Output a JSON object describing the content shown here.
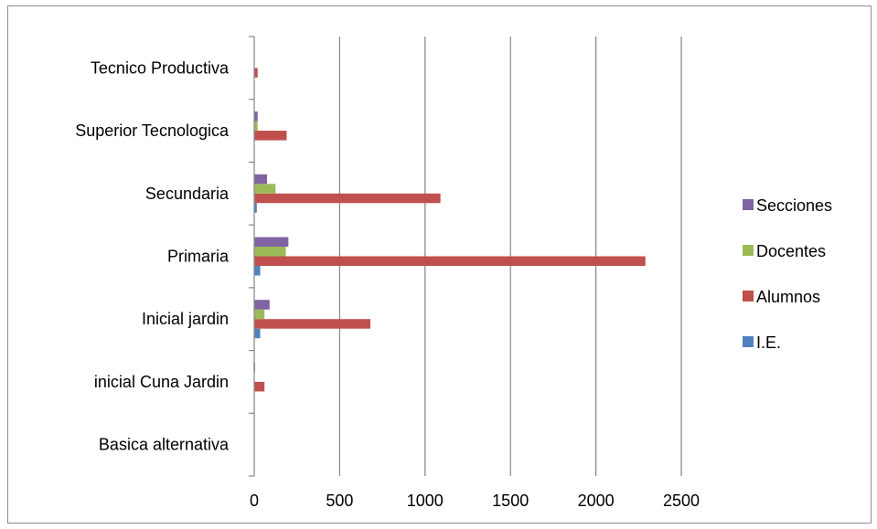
{
  "chart_data": {
    "type": "bar",
    "orientation": "horizontal",
    "title": "",
    "xlabel": "",
    "ylabel": "",
    "categories": [
      "Basica alternativa",
      "inicial Cuna Jardin",
      "Inicial jardin",
      "Primaria",
      "Secundaria",
      "Superior Tecnologica",
      "Tecnico Productiva"
    ],
    "series": [
      {
        "name": "I.E.",
        "color": "#4f81bd",
        "values": [
          0,
          0,
          35,
          35,
          15,
          2,
          0
        ]
      },
      {
        "name": "Alumnos",
        "color": "#c0504d",
        "values": [
          0,
          60,
          680,
          2290,
          1090,
          190,
          20
        ]
      },
      {
        "name": "Docentes",
        "color": "#9bbb59",
        "values": [
          0,
          0,
          60,
          185,
          125,
          20,
          0
        ]
      },
      {
        "name": "Secciones",
        "color": "#8064a2",
        "values": [
          0,
          5,
          90,
          200,
          75,
          20,
          0
        ]
      }
    ],
    "xlim": [
      0,
      2500
    ],
    "xticks": [
      "0",
      "500",
      "1000",
      "1500",
      "2000",
      "2500"
    ],
    "grid": "vertical",
    "legend": "right"
  }
}
